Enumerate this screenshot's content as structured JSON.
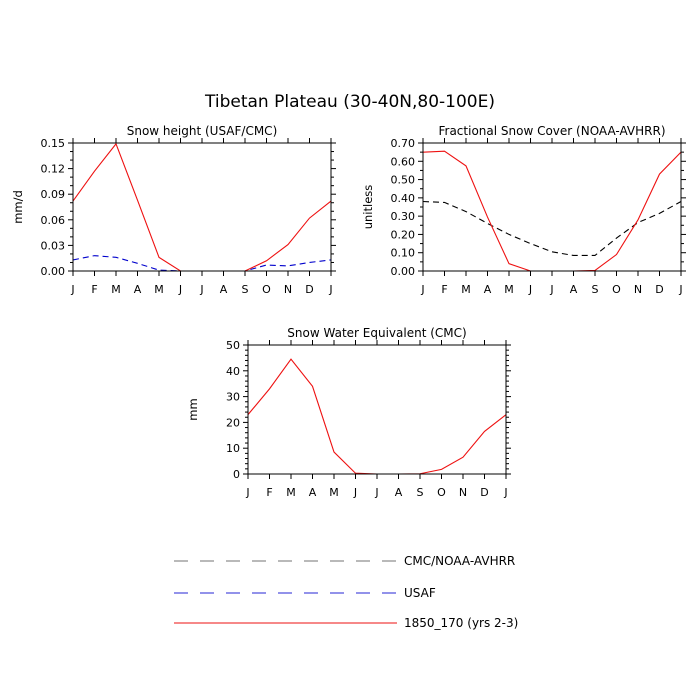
{
  "figure": {
    "title": "Tibetan Plateau (30-40N,80-100E)"
  },
  "colors": {
    "obs": "#000000",
    "usaf": "#0000cc",
    "model": "#ee1111"
  },
  "legend": [
    {
      "label": "CMC/NOAA-AVHRR",
      "color": "#000000",
      "dash": "dashed"
    },
    {
      "label": "USAF",
      "color": "#0000cc",
      "dash": "dashed"
    },
    {
      "label": "1850_170 (yrs 2-3)",
      "color": "#ee1111",
      "dash": "solid"
    }
  ],
  "chart_data": [
    {
      "type": "line",
      "title": "Snow height (USAF/CMC)",
      "xlabel": "",
      "ylabel": "mm/d",
      "categories": [
        "J",
        "F",
        "M",
        "A",
        "M",
        "J",
        "J",
        "A",
        "S",
        "O",
        "N",
        "D",
        "J"
      ],
      "ylim": [
        0,
        0.15
      ],
      "yticks": [
        "0.00",
        "0.03",
        "0.06",
        "0.09",
        "0.12",
        "0.15"
      ],
      "yticks_values": [
        0,
        0.03,
        0.06,
        0.09,
        0.12,
        0.15
      ],
      "series": [
        {
          "name": "CMC/NOAA-AVHRR",
          "color": "#000000",
          "dash": "dashed",
          "values": [
            0.0,
            0.0,
            0.0,
            0.0,
            0.0,
            0.0,
            0.0,
            0.0,
            0.0,
            0.0,
            0.0,
            0.0,
            0.0
          ]
        },
        {
          "name": "USAF",
          "color": "#0000cc",
          "dash": "dashed",
          "values": [
            0.013,
            0.018,
            0.016,
            0.009,
            0.001,
            0.0,
            0.0,
            0.0,
            0.0,
            0.007,
            0.006,
            0.01,
            0.013
          ]
        },
        {
          "name": "1850_170 (yrs 2-3)",
          "color": "#ee1111",
          "dash": "solid",
          "values": [
            0.082,
            0.117,
            0.149,
            0.083,
            0.016,
            0.0,
            0.0,
            0.0,
            0.0,
            0.012,
            0.031,
            0.062,
            0.082
          ]
        }
      ]
    },
    {
      "type": "line",
      "title": "Fractional Snow Cover (NOAA-AVHRR)",
      "xlabel": "",
      "ylabel": "unitless",
      "categories": [
        "J",
        "F",
        "M",
        "A",
        "M",
        "J",
        "J",
        "A",
        "S",
        "O",
        "N",
        "D",
        "J"
      ],
      "ylim": [
        0,
        0.7
      ],
      "yticks": [
        "0.00",
        "0.10",
        "0.20",
        "0.30",
        "0.40",
        "0.50",
        "0.60",
        "0.70"
      ],
      "yticks_values": [
        0,
        0.1,
        0.2,
        0.3,
        0.4,
        0.5,
        0.6,
        0.7
      ],
      "series": [
        {
          "name": "CMC/NOAA-AVHRR",
          "color": "#000000",
          "dash": "dashed",
          "values": [
            0.38,
            0.375,
            0.325,
            0.26,
            0.2,
            0.15,
            0.105,
            0.085,
            0.085,
            0.18,
            0.265,
            0.315,
            0.38
          ]
        },
        {
          "name": "1850_170 (yrs 2-3)",
          "color": "#ee1111",
          "dash": "solid",
          "values": [
            0.65,
            0.655,
            0.575,
            0.295,
            0.04,
            0.0,
            0.0,
            0.0,
            0.003,
            0.09,
            0.28,
            0.53,
            0.65
          ]
        }
      ]
    },
    {
      "type": "line",
      "title": "Snow Water Equivalent (CMC)",
      "xlabel": "",
      "ylabel": "mm",
      "categories": [
        "J",
        "F",
        "M",
        "A",
        "M",
        "J",
        "J",
        "A",
        "S",
        "O",
        "N",
        "D",
        "J"
      ],
      "ylim": [
        0,
        50
      ],
      "yticks": [
        "0",
        "10",
        "20",
        "30",
        "40",
        "50"
      ],
      "yticks_values": [
        0,
        10,
        20,
        30,
        40,
        50
      ],
      "series": [
        {
          "name": "CMC/NOAA-AVHRR",
          "color": "#000000",
          "dash": "dashed",
          "values": [
            0,
            0,
            0,
            0,
            0,
            0,
            0,
            0,
            0,
            0,
            0,
            0,
            0
          ]
        },
        {
          "name": "1850_170 (yrs 2-3)",
          "color": "#ee1111",
          "dash": "solid",
          "values": [
            23,
            33,
            44.5,
            34,
            8.5,
            0.3,
            0,
            0,
            0.1,
            1.8,
            6.5,
            16.5,
            23
          ]
        }
      ]
    }
  ]
}
